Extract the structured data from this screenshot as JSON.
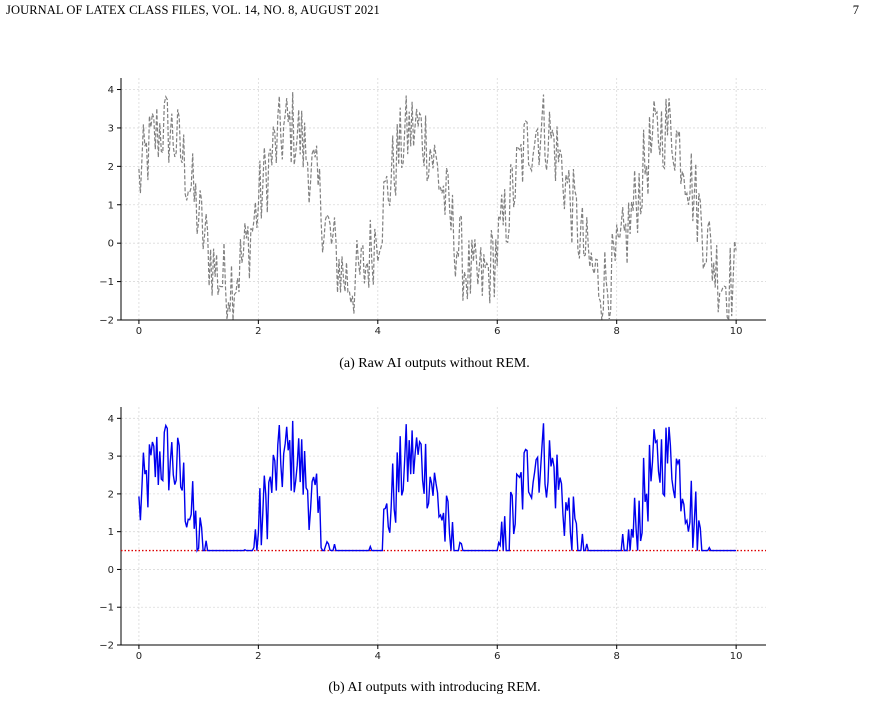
{
  "header": {
    "journal": "JOURNAL OF LATEX CLASS FILES, VOL. 14, NO. 8, AUGUST 2021",
    "page_number": "7"
  },
  "figures": [
    {
      "caption": "(a) Raw AI outputs without REM."
    },
    {
      "caption": "(b) AI outputs with introducing REM."
    }
  ],
  "chart_data": [
    {
      "type": "line",
      "title": "",
      "xlabel": "",
      "ylabel": "",
      "xlim": [
        -0.3,
        10.5
      ],
      "ylim": [
        -2,
        4.3
      ],
      "xticks": [
        "0",
        "2",
        "4",
        "6",
        "8",
        "10"
      ],
      "yticks": [
        "−2",
        "−1",
        "0",
        "1",
        "2",
        "3",
        "4"
      ],
      "grid": true,
      "series": [
        {
          "style": "dashed",
          "color": "#808080",
          "description_values": "noisy sinusoid, period ~2.1, amplitude ~2, offset 1, noise ±1",
          "x_range": [
            0,
            10
          ],
          "points": 400
        }
      ]
    },
    {
      "type": "line",
      "title": "",
      "xlabel": "",
      "ylabel": "",
      "xlim": [
        -0.3,
        10.5
      ],
      "ylim": [
        -2,
        4.3
      ],
      "xticks": [
        "0",
        "2",
        "4",
        "6",
        "8",
        "10"
      ],
      "yticks": [
        "−2",
        "−1",
        "0",
        "1",
        "2",
        "3",
        "4"
      ],
      "grid": true,
      "threshold": 0.5,
      "series": [
        {
          "style": "solid",
          "color": "#0000ee",
          "rule": "max(raw, 0.5)",
          "x_range": [
            0,
            10
          ],
          "points": 400
        },
        {
          "style": "dotted",
          "color": "#dd0000",
          "y": 0.5
        }
      ]
    }
  ]
}
